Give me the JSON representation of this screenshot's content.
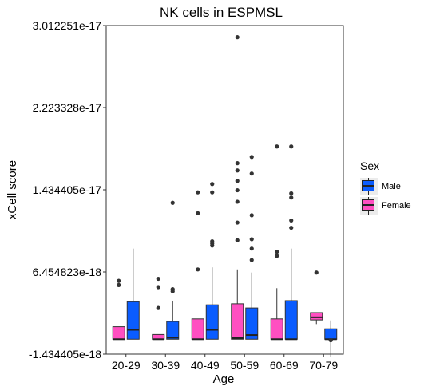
{
  "chart_data": {
    "type": "boxplot",
    "title": "NK cells in ESPMSL",
    "xlabel": "Age",
    "ylabel": "xCell score",
    "categories": [
      "20-29",
      "30-39",
      "40-49",
      "50-59",
      "60-69",
      "70-79"
    ],
    "yticks": [
      -1.434405e-18,
      6.454823e-18,
      1.434405e-17,
      2.223328e-17,
      3.012251e-17
    ],
    "ytick_labels": [
      "-1.434405e-18",
      "6.454823e-18",
      "1.434405e-17",
      "2.223328e-17",
      "3.012251e-17"
    ],
    "ylim": [
      -1.434405e-18,
      3.012251e-17
    ],
    "legend": {
      "title": "Sex",
      "position": "right",
      "entries": [
        {
          "label": "Male",
          "color": "#0a5cff"
        },
        {
          "label": "Female",
          "color": "#ff4fc1"
        }
      ]
    },
    "series": [
      {
        "name": "Female",
        "color": "#ff4fc1",
        "boxes": [
          {
            "category": "20-29",
            "whisker_low": 0,
            "q1": 0,
            "median": 0,
            "q3": 1.2e-18,
            "whisker_high": 1.2e-18,
            "outliers": [
              5.2e-18,
              5.6e-18
            ]
          },
          {
            "category": "30-39",
            "whisker_low": 0,
            "q1": 0,
            "median": 0,
            "q3": 4.5e-19,
            "whisker_high": 4.5e-19,
            "outliers": [
              3e-18,
              5e-18,
              5.8e-18
            ]
          },
          {
            "category": "40-49",
            "whisker_low": 0,
            "q1": 0,
            "median": 0,
            "q3": 1.95e-18,
            "whisker_high": 1.95e-18,
            "outliers": [
              6.7e-18,
              1.21e-17,
              1.41e-17
            ]
          },
          {
            "category": "50-59",
            "whisker_low": 0,
            "q1": 0,
            "median": 1e-19,
            "q3": 3.4e-18,
            "whisker_high": 6.7e-18,
            "outliers": [
              9.5e-18,
              1.12e-17,
              1.32e-17,
              1.43e-17,
              1.52e-17,
              1.62e-17,
              1.69e-17,
              2.9e-17
            ]
          },
          {
            "category": "60-69",
            "whisker_low": 0,
            "q1": 0,
            "median": 0,
            "q3": 1.95e-18,
            "whisker_high": 4.9e-18,
            "outliers": [
              8e-18,
              8.4e-18,
              1.85e-17
            ]
          },
          {
            "category": "70-79",
            "whisker_low": 1.45e-18,
            "q1": 1.85e-18,
            "median": 2.1e-18,
            "q3": 2.55e-18,
            "whisker_high": 2.55e-18,
            "outliers": [
              6.4e-18
            ]
          }
        ]
      },
      {
        "name": "Male",
        "color": "#0a5cff",
        "boxes": [
          {
            "category": "20-29",
            "whisker_low": 0,
            "q1": 0,
            "median": 9e-19,
            "q3": 3.6e-18,
            "whisker_high": 8.7e-18,
            "outliers": []
          },
          {
            "category": "30-39",
            "whisker_low": 0,
            "q1": 0,
            "median": 1.5e-19,
            "q3": 1.7e-18,
            "whisker_high": 3.7e-18,
            "outliers": [
              4.6e-18,
              4.8e-18,
              1.31e-17
            ]
          },
          {
            "category": "40-49",
            "whisker_low": 0,
            "q1": 0,
            "median": 9e-19,
            "q3": 3.3e-18,
            "whisker_high": 6.9e-18,
            "outliers": [
              9e-18,
              9.2e-18,
              9.4e-18,
              1.41e-17,
              1.49e-17
            ]
          },
          {
            "category": "50-59",
            "whisker_low": 0,
            "q1": 0,
            "median": 4e-19,
            "q3": 3e-18,
            "whisker_high": 6.4e-18,
            "outliers": [
              7.6e-18,
              8.7e-18,
              9.6e-18,
              1.19e-17,
              1.59e-17,
              1.75e-17
            ]
          },
          {
            "category": "60-69",
            "whisker_low": 0,
            "q1": 0,
            "median": 0,
            "q3": 3.7e-18,
            "whisker_high": 8.7e-18,
            "outliers": [
              1.07e-17,
              1.14e-17,
              1.36e-17,
              1.4e-17,
              1.85e-17
            ]
          },
          {
            "category": "70-79",
            "whisker_low": -1.7e-18,
            "q1": 0,
            "median": 0,
            "q3": 1e-18,
            "whisker_high": 1.8e-18,
            "outliers": [
              -1e-19
            ]
          }
        ]
      }
    ]
  }
}
